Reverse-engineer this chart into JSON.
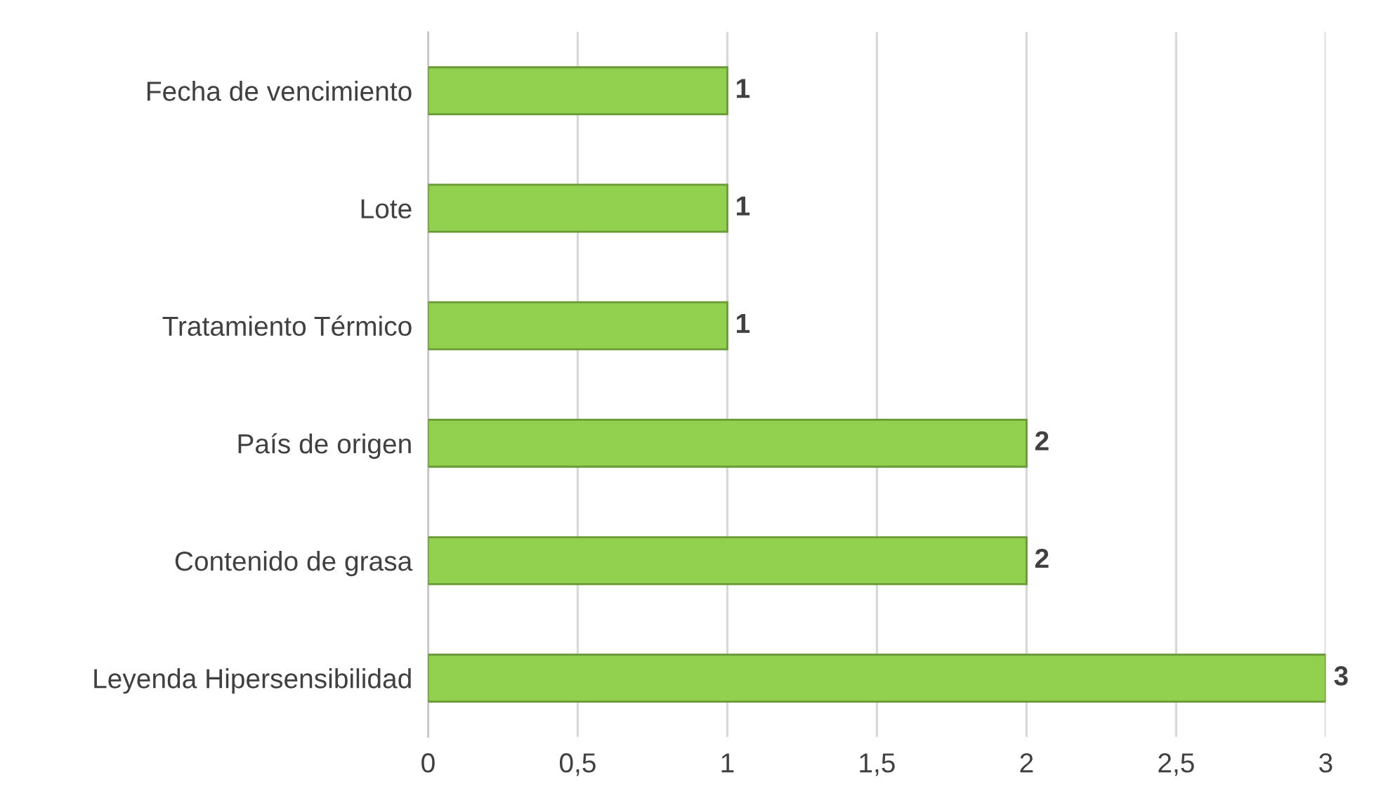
{
  "chart_data": {
    "type": "bar",
    "orientation": "horizontal",
    "categories": [
      "Fecha de vencimiento",
      "Lote",
      "Tratamiento Térmico",
      "País de origen",
      "Contenido de grasa",
      "Leyenda Hipersensibilidad"
    ],
    "values": [
      1,
      1,
      1,
      2,
      2,
      3
    ],
    "color": "#92d050",
    "xlim": [
      0,
      3
    ],
    "xticks": [
      0,
      {
        "value": 0.5,
        "label": "0,5"
      },
      1,
      {
        "value": 1.5,
        "label": "1,5"
      },
      2,
      {
        "value": 2.5,
        "label": "2,5"
      },
      3
    ],
    "grid": "x",
    "data_labels": true
  }
}
